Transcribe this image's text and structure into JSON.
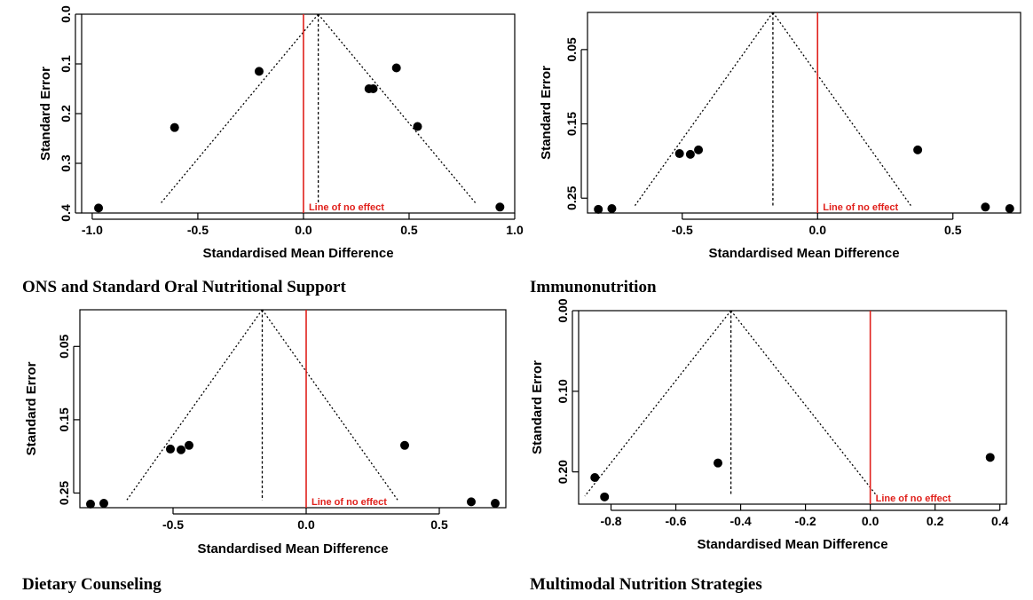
{
  "labels": {
    "xlabel": "Standardised Mean Difference",
    "ylabel": "Standard Error",
    "no_effect": "Line of no effect"
  },
  "captions": [
    "ONS and Standard Oral Nutritional Support",
    "Immunonutrition",
    "Dietary Counseling",
    "Multimodal Nutrition Strategies"
  ],
  "chart_data": [
    {
      "type": "scatter",
      "subtype": "funnel",
      "xlabel": "Standardised Mean Difference",
      "ylabel": "Standard Error",
      "xlim": [
        -1.05,
        1.0
      ],
      "ylim": [
        0.0,
        0.4
      ],
      "y_reversed": true,
      "xticks": [
        "-1.0",
        "-0.5",
        "0.0",
        "0.5",
        "1.0"
      ],
      "xtick_values": [
        -1.0,
        -0.5,
        0.0,
        0.5,
        1.0
      ],
      "yticks": [
        "0.0",
        "0.1",
        "0.2",
        "0.3",
        "0.4"
      ],
      "ytick_values": [
        0.0,
        0.1,
        0.2,
        0.3,
        0.4
      ],
      "pooled_estimate": 0.07,
      "funnel_bottom_se": 0.38,
      "no_effect_x": 0.0,
      "points": [
        {
          "x": -0.97,
          "y": 0.39
        },
        {
          "x": -0.61,
          "y": 0.228
        },
        {
          "x": -0.21,
          "y": 0.115
        },
        {
          "x": 0.31,
          "y": 0.15
        },
        {
          "x": 0.33,
          "y": 0.15
        },
        {
          "x": 0.44,
          "y": 0.108
        },
        {
          "x": 0.54,
          "y": 0.226
        },
        {
          "x": 0.93,
          "y": 0.388
        }
      ],
      "grid": false
    },
    {
      "type": "scatter",
      "subtype": "funnel",
      "xlabel": "Standardised Mean Difference",
      "ylabel": "Standard Error",
      "xlim": [
        -0.85,
        0.75
      ],
      "ylim": [
        0.0,
        0.27
      ],
      "y_reversed": true,
      "xticks": [
        "-0.5",
        "0.0",
        "0.5"
      ],
      "xtick_values": [
        -0.5,
        0.0,
        0.5
      ],
      "yticks": [
        "0.05",
        "0.15",
        "0.25"
      ],
      "ytick_values": [
        0.05,
        0.15,
        0.25
      ],
      "pooled_estimate": -0.165,
      "funnel_bottom_se": 0.26,
      "no_effect_x": 0.0,
      "points": [
        {
          "x": -0.81,
          "y": 0.265
        },
        {
          "x": -0.76,
          "y": 0.264
        },
        {
          "x": -0.51,
          "y": 0.19
        },
        {
          "x": -0.47,
          "y": 0.191
        },
        {
          "x": -0.44,
          "y": 0.185
        },
        {
          "x": 0.37,
          "y": 0.185
        },
        {
          "x": 0.62,
          "y": 0.262
        },
        {
          "x": 0.71,
          "y": 0.264
        }
      ],
      "grid": false
    },
    {
      "type": "scatter",
      "subtype": "funnel",
      "xlabel": "Standardised Mean Difference",
      "ylabel": "Standard Error",
      "xlim": [
        -0.85,
        0.75
      ],
      "ylim": [
        0.0,
        0.27
      ],
      "y_reversed": true,
      "xticks": [
        "-0.5",
        "0.0",
        "0.5"
      ],
      "xtick_values": [
        -0.5,
        0.0,
        0.5
      ],
      "yticks": [
        "0.05",
        "0.15",
        "0.25"
      ],
      "ytick_values": [
        0.05,
        0.15,
        0.25
      ],
      "pooled_estimate": -0.165,
      "funnel_bottom_se": 0.26,
      "no_effect_x": 0.0,
      "points": [
        {
          "x": -0.81,
          "y": 0.265
        },
        {
          "x": -0.76,
          "y": 0.264
        },
        {
          "x": -0.51,
          "y": 0.19
        },
        {
          "x": -0.47,
          "y": 0.191
        },
        {
          "x": -0.44,
          "y": 0.185
        },
        {
          "x": 0.37,
          "y": 0.185
        },
        {
          "x": 0.62,
          "y": 0.262
        },
        {
          "x": 0.71,
          "y": 0.264
        }
      ],
      "grid": false
    },
    {
      "type": "scatter",
      "subtype": "funnel",
      "xlabel": "Standardised Mean Difference",
      "ylabel": "Standard Error",
      "xlim": [
        -0.9,
        0.42
      ],
      "ylim": [
        0.0,
        0.24
      ],
      "y_reversed": true,
      "xticks": [
        "-0.8",
        "-0.6",
        "-0.4",
        "-0.2",
        "0.0",
        "0.2",
        "0.4"
      ],
      "xtick_values": [
        -0.8,
        -0.6,
        -0.4,
        -0.2,
        0.0,
        0.2,
        0.4
      ],
      "yticks": [
        "0.00",
        "0.10",
        "0.20"
      ],
      "ytick_values": [
        0.0,
        0.1,
        0.2
      ],
      "pooled_estimate": -0.43,
      "funnel_bottom_se": 0.23,
      "no_effect_x": 0.0,
      "points": [
        {
          "x": -0.85,
          "y": 0.207
        },
        {
          "x": -0.82,
          "y": 0.231
        },
        {
          "x": -0.47,
          "y": 0.189
        },
        {
          "x": 0.37,
          "y": 0.182
        }
      ],
      "grid": false
    }
  ]
}
